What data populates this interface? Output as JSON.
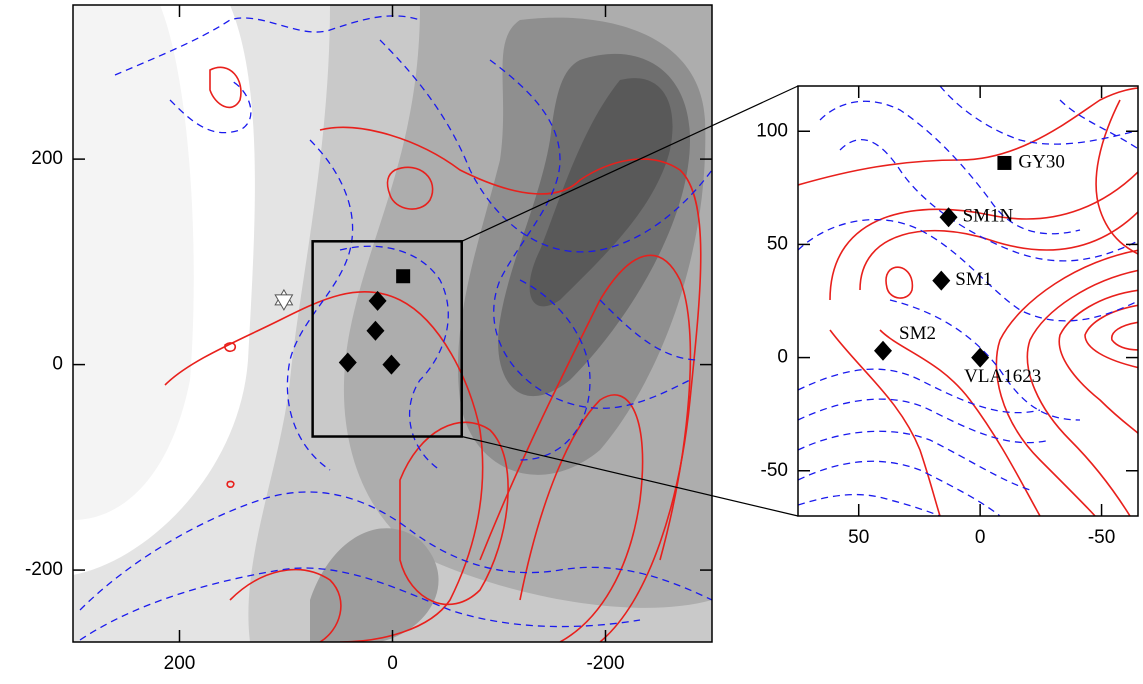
{
  "chart_data": [
    {
      "type": "scatter",
      "xlim": [
        300,
        -300
      ],
      "ylim": [
        -270,
        350
      ],
      "xticks": [
        200,
        0,
        -200
      ],
      "yticks": [
        200,
        0,
        -200
      ],
      "series": [
        {
          "marker": "square",
          "color": "#000000",
          "x": [
            -10
          ],
          "y": [
            86
          ]
        },
        {
          "marker": "diamond",
          "color": "#000000",
          "x": [
            14,
            16,
            42,
            1
          ],
          "y": [
            62,
            33,
            2,
            0
          ]
        },
        {
          "marker": "star",
          "color": "#ffffff",
          "x": [
            102
          ],
          "y": [
            63
          ]
        }
      ]
    },
    {
      "type": "scatter",
      "xlim": [
        75,
        -65
      ],
      "ylim": [
        -70,
        120
      ],
      "xticks": [
        50,
        0,
        -50
      ],
      "yticks": [
        100,
        50,
        0,
        -50
      ],
      "series": [
        {
          "marker": "square",
          "color": "#000000",
          "x": [
            -10
          ],
          "y": [
            86
          ],
          "labels": [
            "GY30"
          ]
        },
        {
          "marker": "diamond",
          "color": "#000000",
          "x": [
            13,
            16,
            40,
            0
          ],
          "y": [
            62,
            34,
            3,
            0
          ],
          "labels": [
            "SM1N",
            "SM1",
            "SM2",
            "VLA1623"
          ]
        }
      ]
    }
  ]
}
